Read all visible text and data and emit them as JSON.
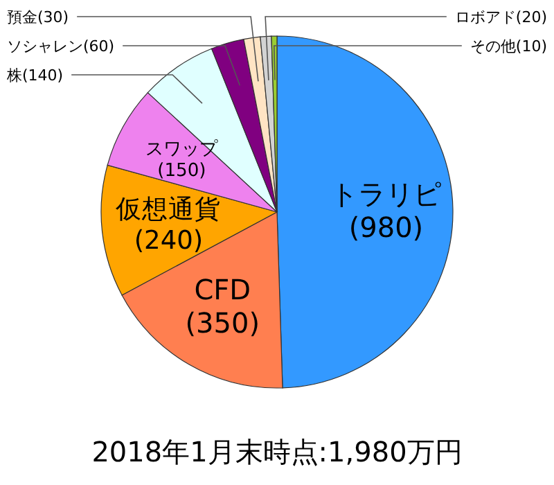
{
  "chart_data": {
    "type": "pie",
    "title": "2018年1月末時点:1,980万円",
    "categories": [
      "トラリピ",
      "CFD",
      "仮想通貨",
      "スワップ",
      "株",
      "ソシャレン",
      "預金",
      "ロボアド",
      "その他"
    ],
    "values": [
      980,
      350,
      240,
      150,
      140,
      60,
      30,
      20,
      10
    ],
    "value_labels": [
      "(980)",
      "(350)",
      "(240)",
      "(150)",
      "(140)",
      "(60)",
      "(30)",
      "(20)",
      "(10)"
    ],
    "colors": [
      "#3399ff",
      "#ff7f50",
      "#ffa500",
      "#ee82ee",
      "#e0ffff",
      "#800080",
      "#ffe4c4",
      "#d3d3d3",
      "#9acd32"
    ]
  }
}
